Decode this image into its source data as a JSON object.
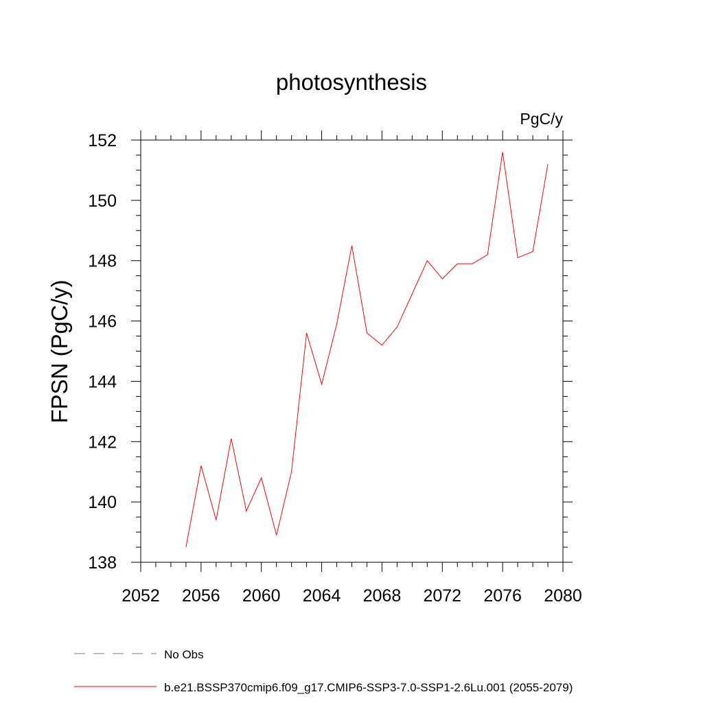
{
  "chart_data": {
    "type": "line",
    "title": "photosynthesis",
    "units_label": "PgC/y",
    "ylabel": "FPSN  (PgC/y)",
    "xlabel": "",
    "xlim": [
      2052,
      2080
    ],
    "ylim": [
      138,
      152
    ],
    "x_ticks": [
      2052,
      2056,
      2060,
      2064,
      2068,
      2072,
      2076,
      2080
    ],
    "y_ticks": [
      138,
      140,
      142,
      144,
      146,
      148,
      150,
      152
    ],
    "grid": false,
    "legend_position": "bottom",
    "series": [
      {
        "name": "b.e21.BSSP370cmip6.f09_g17.CMIP6-SSP3-7.0-SSP1-2.6Lu.001 (2055-2079)",
        "color": "#ff0000",
        "x": [
          2055,
          2056,
          2057,
          2058,
          2059,
          2060,
          2061,
          2062,
          2063,
          2064,
          2065,
          2066,
          2067,
          2068,
          2069,
          2070,
          2071,
          2072,
          2073,
          2074,
          2075,
          2076,
          2077,
          2078,
          2079
        ],
        "y": [
          138.5,
          141.2,
          139.4,
          142.1,
          139.7,
          140.8,
          138.9,
          141.0,
          145.6,
          143.9,
          145.9,
          148.5,
          145.6,
          145.2,
          145.8,
          146.9,
          148.0,
          147.4,
          147.9,
          147.9,
          148.2,
          151.6,
          148.1,
          148.3,
          151.2
        ]
      }
    ],
    "legend": [
      {
        "label": "No Obs",
        "color": "#7b68b0",
        "style": "dashed"
      },
      {
        "label": "b.e21.BSSP370cmip6.f09_g17.CMIP6-SSP3-7.0-SSP1-2.6Lu.001 (2055-2079)",
        "color": "#ff0000",
        "style": "solid"
      }
    ]
  }
}
